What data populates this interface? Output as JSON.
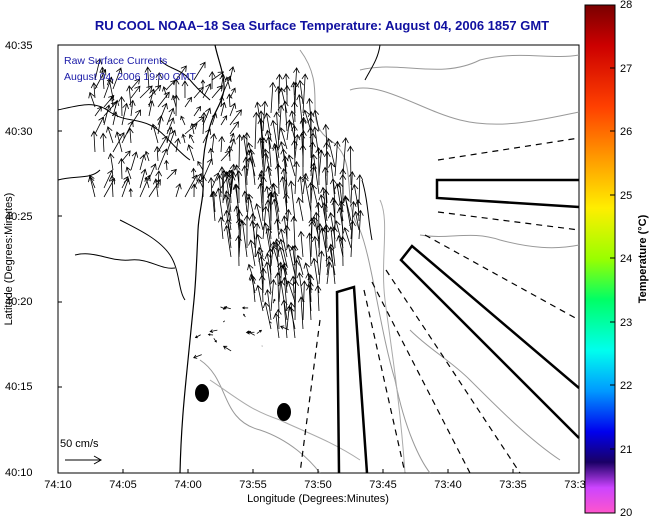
{
  "title": "RU COOL  NOAA–18  Sea Surface Temperature:  August 04, 2006 1857 GMT",
  "overlay": {
    "line1": "Raw Surface Currents",
    "line2": "August 04, 2006 19:00 GMT"
  },
  "axes": {
    "xlabel": "Longitude (Degrees:Minutes)",
    "ylabel": "Latitude (Degrees:Minutes)",
    "x_ticks": [
      "74:10",
      "74:05",
      "74:00",
      "73:55",
      "73:50",
      "73:45",
      "73:40",
      "73:35",
      "73:3"
    ],
    "y_ticks": [
      "40:35",
      "40:30",
      "40:25",
      "40:20",
      "40:15",
      "40:10"
    ]
  },
  "scale_label": "50 cm/s",
  "colorbar": {
    "label": "Temperature (°C)",
    "ticks": [
      "28",
      "27",
      "26",
      "25",
      "24",
      "23",
      "22",
      "21",
      "20"
    ],
    "min": 20,
    "max": 28
  },
  "colors": {
    "title": "#1010a0",
    "overlay_text": "#1a1aa8",
    "coastline": "#000000",
    "contours": "#888888"
  }
}
